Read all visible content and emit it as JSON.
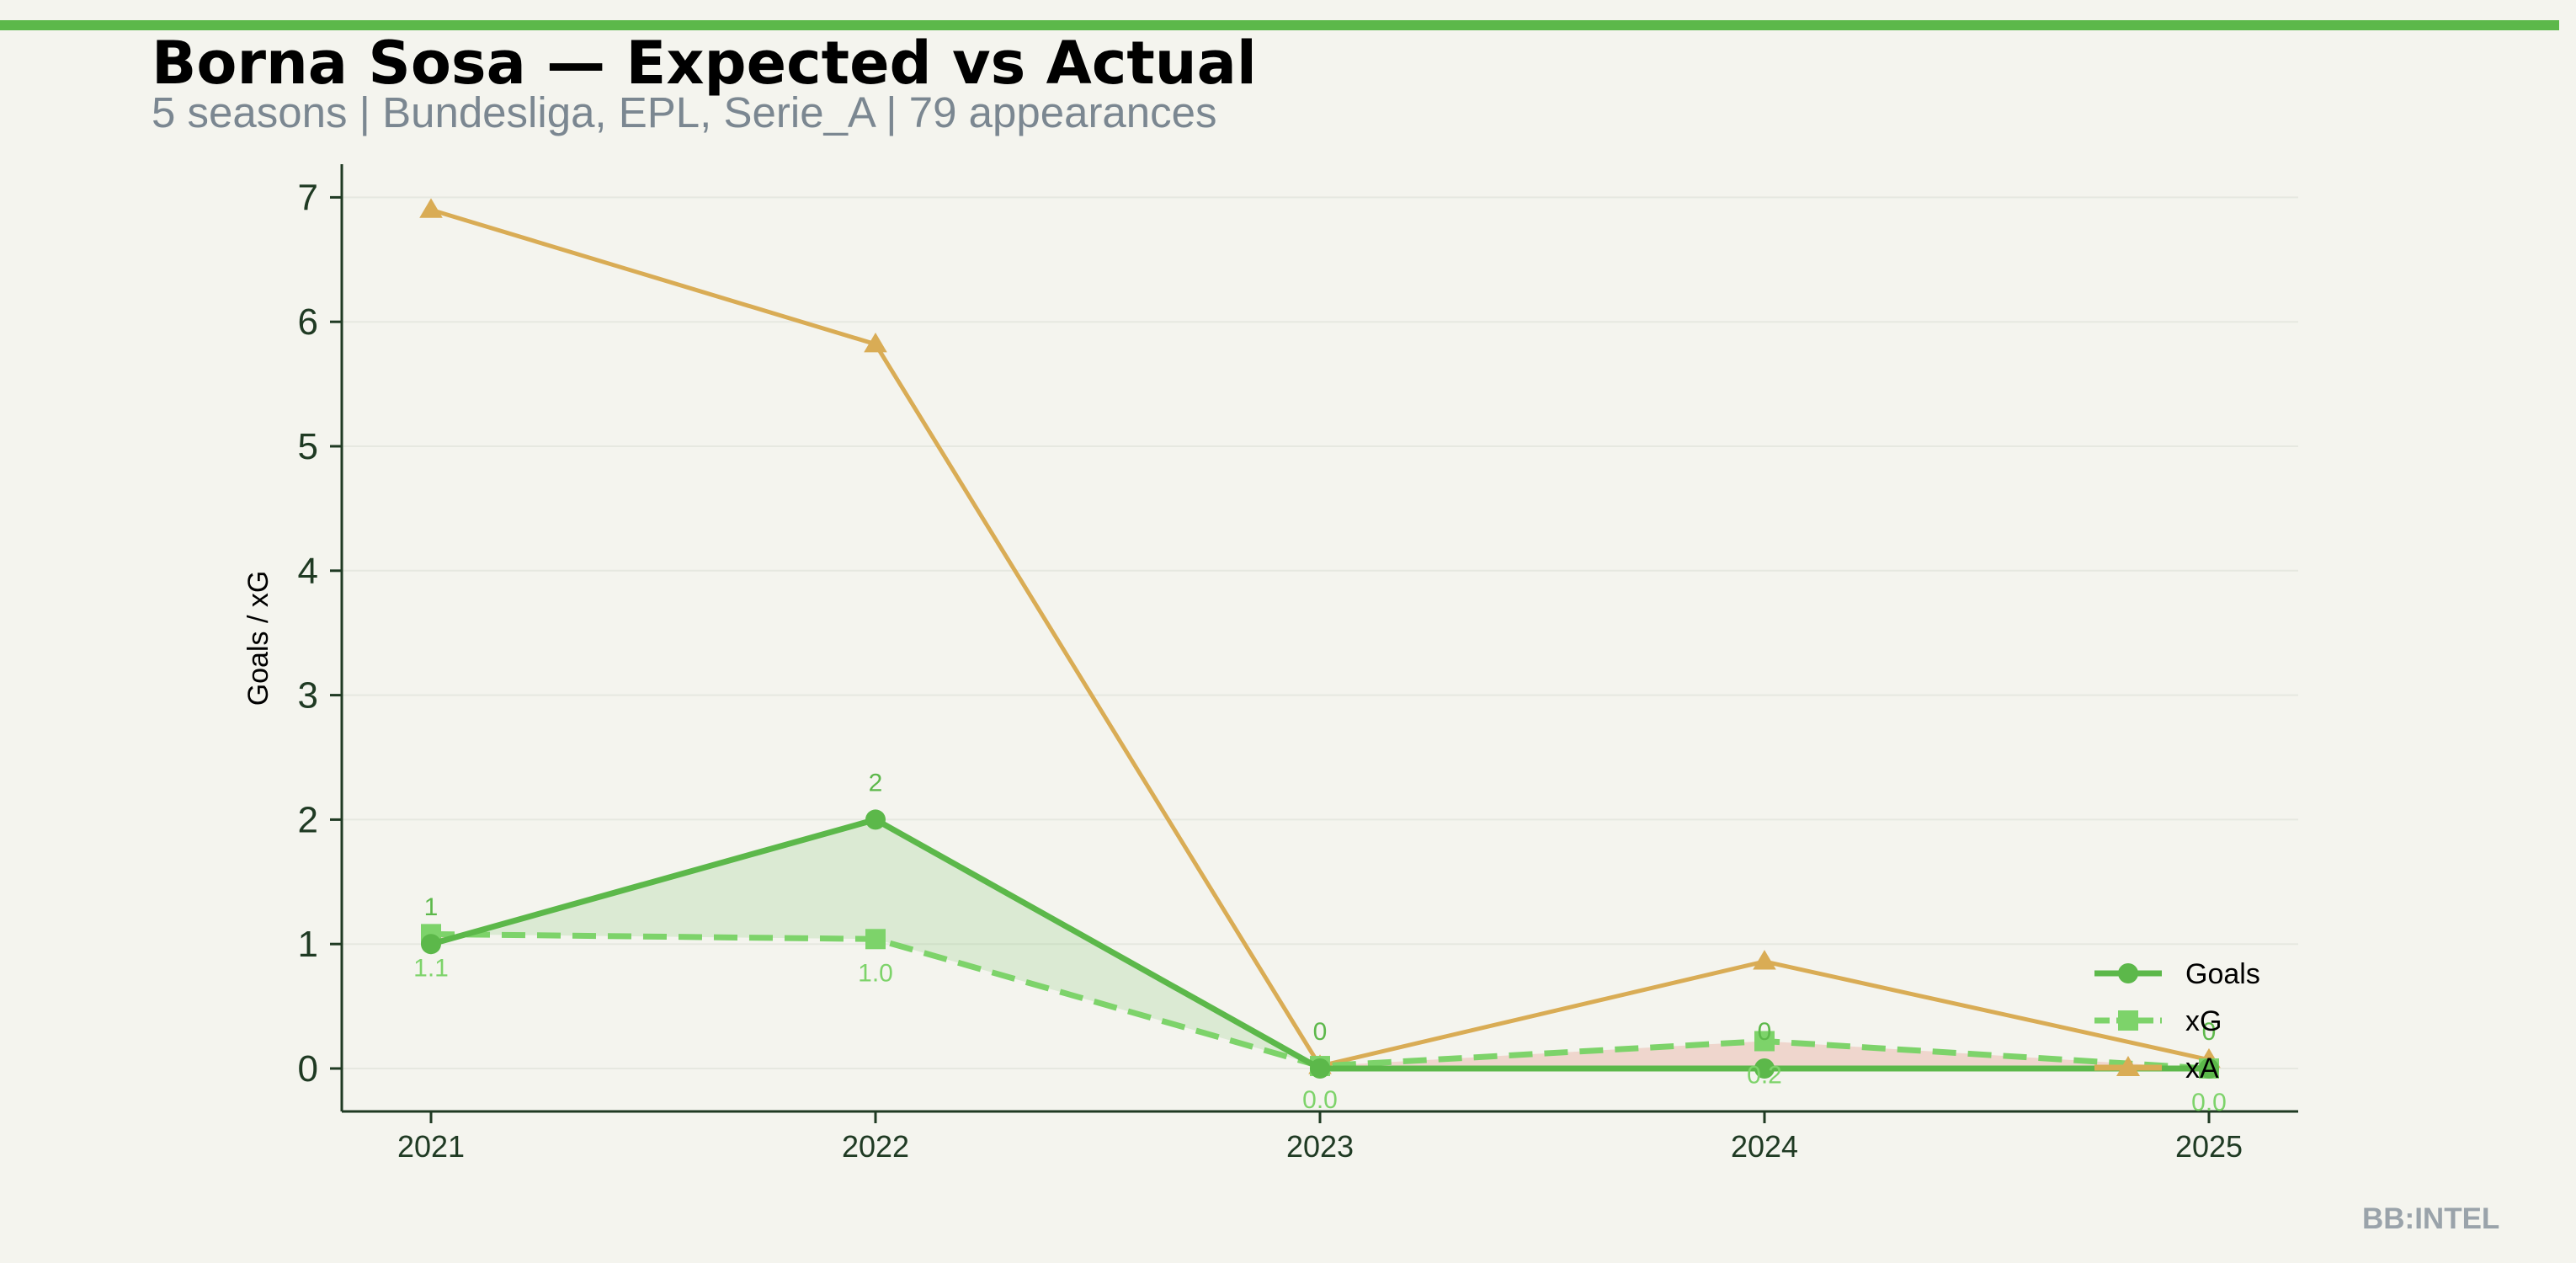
{
  "header": {
    "title": "Borna Sosa — Expected vs Actual",
    "subtitle": "5 seasons | Bundesliga, EPL, Serie_A | 79 appearances"
  },
  "footer": {
    "brand": "BB:INTEL"
  },
  "colors": {
    "goals": "#5cb84a",
    "xg": "#7dd36a",
    "xa": "#d9ac55",
    "accent": "#5cb84a"
  },
  "chart_data": {
    "type": "line",
    "ylabel": "Goals / xG",
    "xlabel": "",
    "x": [
      "2021",
      "2022",
      "2023",
      "2024",
      "2025"
    ],
    "ylim": [
      -0.35,
      7.3
    ],
    "yticks": [
      "0",
      "1",
      "2",
      "3",
      "4",
      "5",
      "6",
      "7"
    ],
    "series": [
      {
        "name": "Goals",
        "values": [
          1,
          2,
          0,
          0,
          0
        ],
        "labels": [
          "1",
          "2",
          "0",
          "0",
          "0"
        ],
        "marker": "circle",
        "style": "solid"
      },
      {
        "name": "xG",
        "values": [
          1.08,
          1.04,
          0.02,
          0.22,
          0.0
        ],
        "labels": [
          "1.1",
          "1.0",
          "0.0",
          "0.2",
          "0.0"
        ],
        "marker": "square",
        "style": "dashed"
      },
      {
        "name": "xA",
        "values": [
          6.9,
          5.82,
          0.02,
          0.86,
          0.07
        ],
        "marker": "triangle",
        "style": "solid"
      }
    ],
    "legend": {
      "position": "lower-right"
    },
    "grid": true
  }
}
